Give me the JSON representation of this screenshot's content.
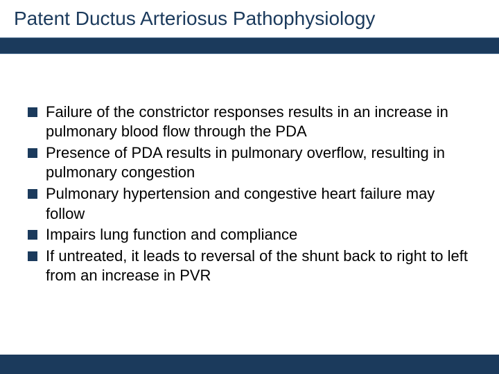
{
  "slide": {
    "title": "Patent Ductus Arteriosus Pathophysiology",
    "title_color": "#1b3a5c",
    "title_fontsize": 28,
    "bar_color": "#1b3a5c",
    "bullet_marker_color": "#1b3a5c",
    "bullet_fontsize": 22,
    "bullet_text_color": "#000000",
    "background_color": "#ffffff",
    "bullets": [
      "Failure of the constrictor responses results in an increase in pulmonary blood flow through the PDA",
      "Presence of PDA results in pulmonary overflow, resulting in pulmonary congestion",
      "Pulmonary hypertension and congestive heart failure may follow",
      "Impairs lung function and compliance",
      "If untreated, it leads to reversal of the shunt back to right to left from an increase in PVR"
    ]
  }
}
